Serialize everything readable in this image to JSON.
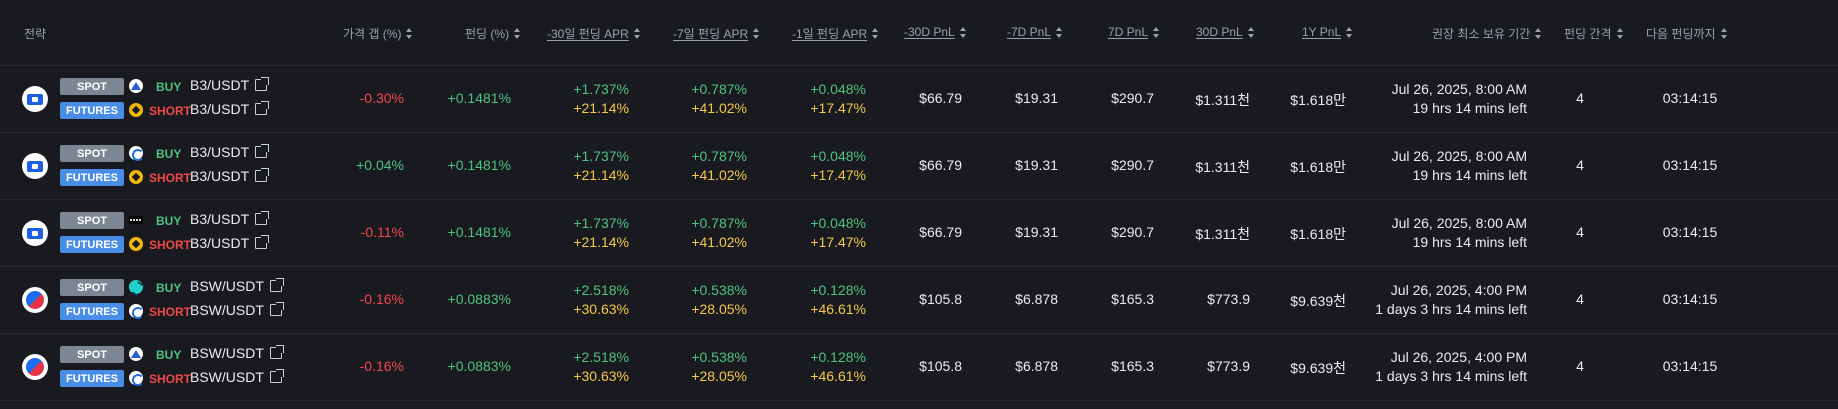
{
  "header": {
    "strategy": "전략",
    "price_gap": "가격 갭 (%)",
    "funding": "펀딩 (%)",
    "apr30": "-30일 펀딩 APR",
    "apr7": "-7일 펀딩 APR",
    "apr1": "-1일 펀딩 APR",
    "pnl30d_past": "-30D PnL",
    "pnl7d_past": "-7D PnL",
    "pnl7d": "7D PnL",
    "pnl30d": "30D PnL",
    "pnl1y": "1Y PnL",
    "min_hold": "권장 최소 보유 기간",
    "interval": "펀딩 간격",
    "next_funding": "다음 펀딩까지"
  },
  "rows": [
    {
      "coin": "b3-coin-icon",
      "spot_label": "SPOT",
      "futures_label": "FUTURES",
      "spot_exchange": "mountain-exchange-icon",
      "futures_exchange": "binance-exchange-icon",
      "buy_label": "BUY",
      "short_label": "SHORT",
      "spot_pair": "B3/USDT",
      "futures_pair": "B3/USDT",
      "gap": "-0.30%",
      "gap_color": "#f04848",
      "funding": "+0.1481%",
      "apr30_a": "+1.737%",
      "apr30_b": "+21.14%",
      "apr7_a": "+0.787%",
      "apr7_b": "+41.02%",
      "apr1_a": "+0.048%",
      "apr1_b": "+17.47%",
      "pnl30d_past": "$66.79",
      "pnl7d_past": "$19.31",
      "pnl7d": "$290.7",
      "pnl30d": "$1.311천",
      "pnl1y": "$1.618만",
      "hold_date": "Jul 26, 2025, 8:00 AM",
      "hold_left": "19 hrs 14 mins left",
      "interval": "4",
      "next": "03:14:15"
    },
    {
      "coin": "b3-coin-icon",
      "spot_label": "SPOT",
      "futures_label": "FUTURES",
      "spot_exchange": "cyclic-exchange-icon",
      "futures_exchange": "binance-exchange-icon",
      "buy_label": "BUY",
      "short_label": "SHORT",
      "spot_pair": "B3/USDT",
      "futures_pair": "B3/USDT",
      "gap": "+0.04%",
      "gap_color": "#4fc27f",
      "funding": "+0.1481%",
      "apr30_a": "+1.737%",
      "apr30_b": "+21.14%",
      "apr7_a": "+0.787%",
      "apr7_b": "+41.02%",
      "apr1_a": "+0.048%",
      "apr1_b": "+17.47%",
      "pnl30d_past": "$66.79",
      "pnl7d_past": "$19.31",
      "pnl7d": "$290.7",
      "pnl30d": "$1.311천",
      "pnl1y": "$1.618만",
      "hold_date": "Jul 26, 2025, 8:00 AM",
      "hold_left": "19 hrs 14 mins left",
      "interval": "4",
      "next": "03:14:15"
    },
    {
      "coin": "b3-coin-icon",
      "spot_label": "SPOT",
      "futures_label": "FUTURES",
      "spot_exchange": "dark-exchange-icon",
      "futures_exchange": "binance-exchange-icon",
      "buy_label": "BUY",
      "short_label": "SHORT",
      "spot_pair": "B3/USDT",
      "futures_pair": "B3/USDT",
      "gap": "-0.11%",
      "gap_color": "#f04848",
      "funding": "+0.1481%",
      "apr30_a": "+1.737%",
      "apr30_b": "+21.14%",
      "apr7_a": "+0.787%",
      "apr7_b": "+41.02%",
      "apr1_a": "+0.048%",
      "apr1_b": "+17.47%",
      "pnl30d_past": "$66.79",
      "pnl7d_past": "$19.31",
      "pnl7d": "$290.7",
      "pnl30d": "$1.311천",
      "pnl1y": "$1.618만",
      "hold_date": "Jul 26, 2025, 8:00 AM",
      "hold_left": "19 hrs 14 mins left",
      "interval": "4",
      "next": "03:14:15"
    },
    {
      "coin": "bsw-coin-icon",
      "spot_label": "SPOT",
      "futures_label": "FUTURES",
      "spot_exchange": "teal-exchange-icon",
      "futures_exchange": "cyclic-exchange-icon",
      "buy_label": "BUY",
      "short_label": "SHORT",
      "spot_pair": "BSW/USDT",
      "futures_pair": "BSW/USDT",
      "gap": "-0.16%",
      "gap_color": "#f04848",
      "funding": "+0.0883%",
      "apr30_a": "+2.518%",
      "apr30_b": "+30.63%",
      "apr7_a": "+0.538%",
      "apr7_b": "+28.05%",
      "apr1_a": "+0.128%",
      "apr1_b": "+46.61%",
      "pnl30d_past": "$105.8",
      "pnl7d_past": "$6.878",
      "pnl7d": "$165.3",
      "pnl30d": "$773.9",
      "pnl1y": "$9.639천",
      "hold_date": "Jul 26, 2025, 4:00 PM",
      "hold_left": "1 days 3 hrs 14 mins left",
      "interval": "4",
      "next": "03:14:15"
    },
    {
      "coin": "bsw-coin-icon",
      "spot_label": "SPOT",
      "futures_label": "FUTURES",
      "spot_exchange": "mountain-exchange-icon",
      "futures_exchange": "cyclic-exchange-icon",
      "buy_label": "BUY",
      "short_label": "SHORT",
      "spot_pair": "BSW/USDT",
      "futures_pair": "BSW/USDT",
      "gap": "-0.16%",
      "gap_color": "#f04848",
      "funding": "+0.0883%",
      "apr30_a": "+2.518%",
      "apr30_b": "+30.63%",
      "apr7_a": "+0.538%",
      "apr7_b": "+28.05%",
      "apr1_a": "+0.128%",
      "apr1_b": "+46.61%",
      "pnl30d_past": "$105.8",
      "pnl7d_past": "$6.878",
      "pnl7d": "$165.3",
      "pnl30d": "$773.9",
      "pnl1y": "$9.639천",
      "hold_date": "Jul 26, 2025, 4:00 PM",
      "hold_left": "1 days 3 hrs 14 mins left",
      "interval": "4",
      "next": "03:14:15"
    }
  ]
}
